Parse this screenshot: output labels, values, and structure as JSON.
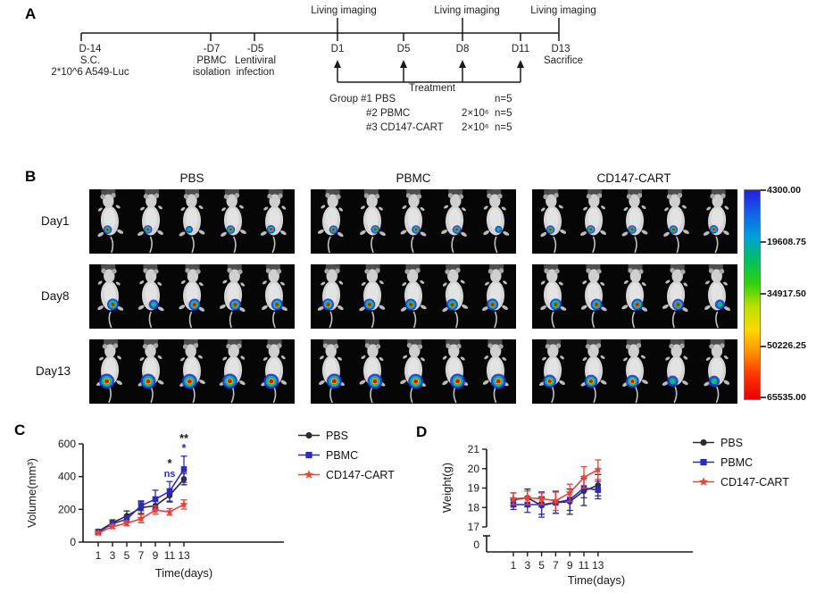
{
  "panels": {
    "A": {
      "label": "A",
      "living_imaging": [
        "Living imaging",
        "Living imaging",
        "Living imaging"
      ],
      "tick_d14": {
        "l1": "D-14",
        "l2": "S.C.",
        "l3": "2*10^6 A549-Luc"
      },
      "tick_d7": {
        "l1": "-D7",
        "l2": "PBMC",
        "l3": "isolation"
      },
      "tick_d5": {
        "l1": "-D5",
        "l2": "Lentiviral",
        "l3": "infection"
      },
      "tick_day1": "D1",
      "tick_day5": "D5",
      "tick_day8": "D8",
      "tick_day11": "D11",
      "tick_day13": "D13",
      "sacrifice": "Sacrifice",
      "treatment": "Treatment",
      "group_rows": [
        {
          "name": "Group #1 PBS",
          "dose": "",
          "n": "n=5"
        },
        {
          "name": "#2 PBMC",
          "dose": "2×10⁶",
          "n": "n=5"
        },
        {
          "name": "#3 CD147-CART",
          "dose": "2×10⁶",
          "n": "n=5"
        }
      ]
    },
    "B": {
      "label": "B",
      "column_headers": [
        "PBS",
        "PBMC",
        "CD147-CART"
      ],
      "row_labels": [
        "Day1",
        "Day8",
        "Day13"
      ],
      "mice_per_group": 5,
      "groups": [
        {
          "name": "PBS",
          "rows": [
            [
              "h",
              "h",
              "c",
              "h",
              "h"
            ],
            [
              "h",
              "c",
              "h",
              "h",
              "h"
            ],
            [
              "h",
              "h",
              "h",
              "h",
              "h"
            ]
          ]
        },
        {
          "name": "PBMC",
          "rows": [
            [
              "h",
              "h",
              "h",
              "h",
              "c"
            ],
            [
              "h",
              "h",
              "h",
              "h",
              "h"
            ],
            [
              "h",
              "h",
              "h",
              "h",
              "h"
            ]
          ]
        },
        {
          "name": "CD147-CART",
          "rows": [
            [
              "h",
              "h",
              "h",
              "h",
              "h"
            ],
            [
              "h",
              "h",
              "h",
              "h",
              "c"
            ],
            [
              "h",
              "h",
              "h",
              "c",
              "c"
            ]
          ]
        }
      ],
      "colorbar": {
        "labels": [
          "4300.00",
          "19608.75",
          "34917.50",
          "50226.25",
          "65535.00"
        ],
        "gradient": [
          "#2020dd",
          "#1560e8",
          "#00a0d8",
          "#00c060",
          "#30d010",
          "#b8e000",
          "#ffd800",
          "#ff9000",
          "#ff3000",
          "#e80000"
        ]
      }
    },
    "C": {
      "label": "C"
    },
    "D": {
      "label": "D"
    }
  },
  "chart_data": [
    {
      "type": "line",
      "panel": "C",
      "xlabel": "Time(days)",
      "ylabel": "Volume(mm³)",
      "x": [
        1,
        3,
        5,
        7,
        9,
        11,
        13
      ],
      "yticks": [
        0,
        200,
        400,
        600
      ],
      "ylim": [
        0,
        600
      ],
      "grid": false,
      "legend_position": "right",
      "series": [
        {
          "name": "PBS",
          "color": "#2b2b2b",
          "marker": "circle",
          "values": [
            65,
            118,
            160,
            210,
            222,
            285,
            385
          ],
          "errors": [
            12,
            18,
            30,
            35,
            30,
            40,
            35
          ]
        },
        {
          "name": "PBMC",
          "color": "#2c2cb8",
          "marker": "square",
          "values": [
            60,
            112,
            140,
            222,
            262,
            310,
            445
          ],
          "errors": [
            10,
            15,
            20,
            30,
            55,
            60,
            80
          ]
        },
        {
          "name": "CD147-CART",
          "color": "#e6443e",
          "marker": "star",
          "values": [
            55,
            95,
            115,
            143,
            195,
            185,
            230
          ],
          "errors": [
            10,
            12,
            15,
            25,
            25,
            20,
            28
          ]
        }
      ],
      "annotations": [
        {
          "x": 11,
          "text": "*",
          "color": "#1a1a1a"
        },
        {
          "x": 11,
          "text": "ns",
          "color": "#2c2cb8"
        },
        {
          "x": 13,
          "text": "**",
          "color": "#1a1a1a"
        },
        {
          "x": 13,
          "text": "*",
          "color": "#2c2cb8"
        }
      ]
    },
    {
      "type": "line",
      "panel": "D",
      "xlabel": "Time(days)",
      "ylabel": "Weight(g)",
      "x": [
        1,
        3,
        5,
        7,
        9,
        11,
        13
      ],
      "yticks": [
        17,
        18,
        19,
        20,
        21
      ],
      "ybreak_label": "0",
      "ylim": [
        17,
        21
      ],
      "grid": false,
      "legend_position": "right",
      "series": [
        {
          "name": "PBS",
          "color": "#2b2b2b",
          "marker": "circle",
          "values": [
            18.4,
            18.5,
            18.1,
            18.25,
            18.3,
            18.85,
            19.15
          ],
          "errors": [
            0.35,
            0.45,
            0.45,
            0.55,
            0.65,
            0.75,
            0.55
          ]
        },
        {
          "name": "PBMC",
          "color": "#2c2cb8",
          "marker": "square",
          "values": [
            18.15,
            18.15,
            18.15,
            18.25,
            18.4,
            19.0,
            18.9
          ],
          "errors": [
            0.25,
            0.4,
            0.65,
            0.55,
            0.55,
            0.5,
            0.45
          ]
        },
        {
          "name": "CD147-CART",
          "color": "#e6443e",
          "marker": "star",
          "values": [
            18.45,
            18.5,
            18.45,
            18.35,
            18.75,
            19.55,
            19.95
          ],
          "errors": [
            0.3,
            0.35,
            0.3,
            0.5,
            0.45,
            0.55,
            0.5
          ]
        }
      ],
      "annotations": []
    }
  ]
}
